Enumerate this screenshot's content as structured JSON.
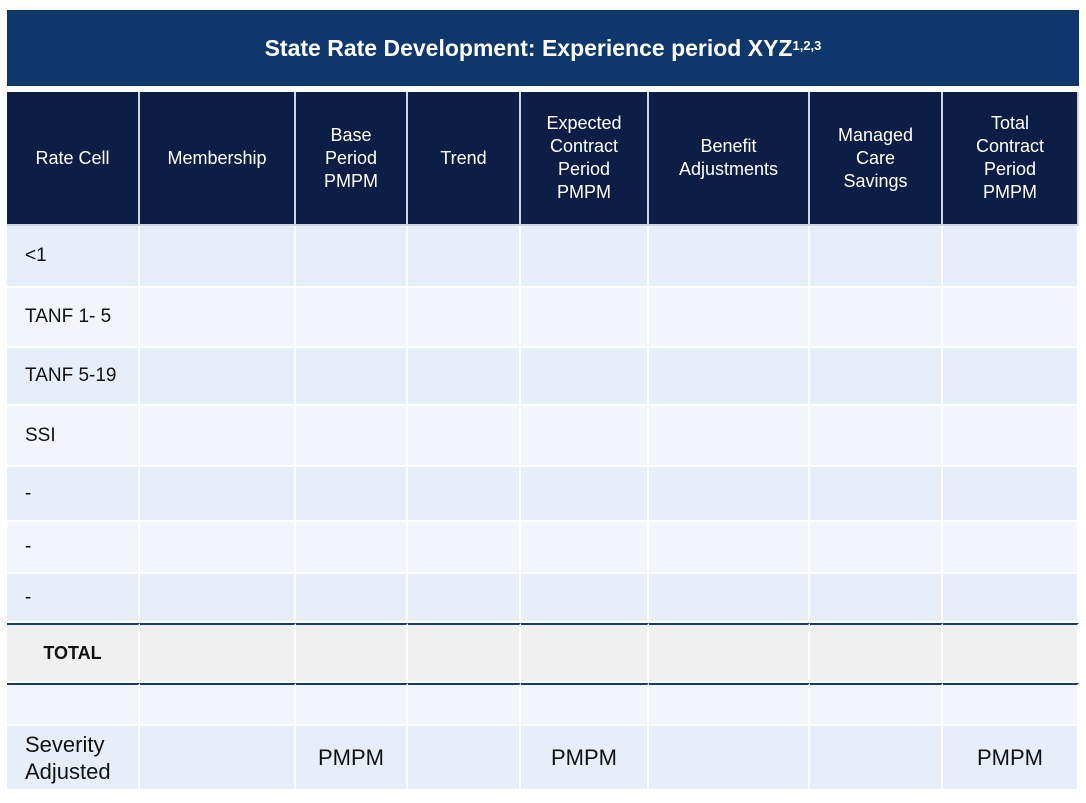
{
  "title": {
    "text": "State Rate Development: Experience period XYZ",
    "superscript": "1,2,3"
  },
  "headers": [
    "Rate Cell",
    "Membership",
    "Base\nPeriod\nPMPM",
    "Trend",
    "Expected\nContract\nPeriod\nPMPM",
    "Benefit\nAdjustments",
    "Managed\nCare\nSavings",
    "Total\nContract\nPeriod\nPMPM"
  ],
  "rows": [
    "<1",
    "TANF 1- 5",
    "TANF 5-19",
    "SSI",
    "-",
    "-",
    "-"
  ],
  "total_label": "TOTAL",
  "severity": {
    "label": "Severity\nAdjusted",
    "cells": [
      "",
      "",
      "PMPM",
      "",
      "PMPM",
      "",
      "",
      "PMPM"
    ]
  },
  "colors": {
    "title_bg": "#0e386c",
    "header_bg": "#0c1e45",
    "row_a": "#e6eef9",
    "row_b": "#f2f6fc",
    "total_bg": "#f0f0f0"
  }
}
